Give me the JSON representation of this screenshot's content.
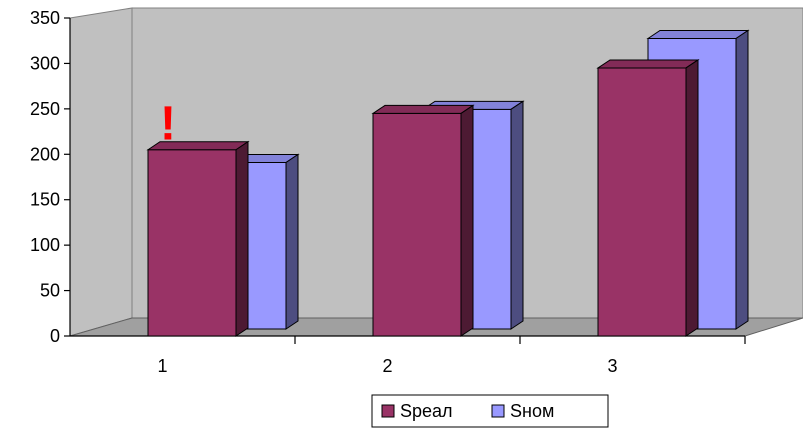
{
  "chart_data": {
    "type": "bar",
    "categories": [
      "1",
      "2",
      "3"
    ],
    "series": [
      {
        "name": "Sреал",
        "values": [
          205,
          245,
          295
        ],
        "color": "#993366"
      },
      {
        "name": "Sном",
        "values": [
          188,
          248,
          328
        ],
        "color": "#9999ff"
      }
    ],
    "y_ticks": [
      "0",
      "50",
      "100",
      "150",
      "200",
      "250",
      "300",
      "350"
    ],
    "ylim": [
      0,
      350
    ],
    "grid": false,
    "legend_position": "bottom",
    "annotations": [
      {
        "text": "!",
        "category": "1",
        "color": "#ff0000"
      }
    ],
    "background_color": "#c0c0c0"
  }
}
